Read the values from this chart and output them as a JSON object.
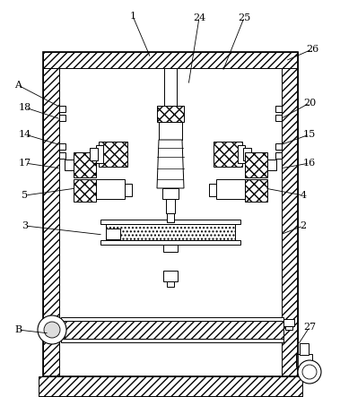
{
  "bg_color": "#ffffff",
  "fig_width": 3.79,
  "fig_height": 4.43,
  "dpi": 100,
  "label_data": [
    [
      "1",
      148,
      18,
      168,
      65
    ],
    [
      "24",
      222,
      20,
      210,
      95
    ],
    [
      "25",
      272,
      20,
      248,
      80
    ],
    [
      "26",
      348,
      55,
      318,
      68
    ],
    [
      "A",
      20,
      95,
      68,
      120
    ],
    [
      "18",
      28,
      120,
      68,
      133
    ],
    [
      "14",
      28,
      150,
      68,
      162
    ],
    [
      "20",
      345,
      115,
      312,
      133
    ],
    [
      "15",
      345,
      150,
      312,
      162
    ],
    [
      "17",
      28,
      182,
      68,
      188
    ],
    [
      "16",
      345,
      182,
      312,
      188
    ],
    [
      "5",
      28,
      218,
      85,
      210
    ],
    [
      "4",
      338,
      218,
      295,
      210
    ],
    [
      "3",
      28,
      252,
      115,
      262
    ],
    [
      "2",
      338,
      252,
      312,
      262
    ],
    [
      "B",
      20,
      368,
      55,
      372
    ],
    [
      "27",
      345,
      365,
      332,
      385
    ]
  ]
}
